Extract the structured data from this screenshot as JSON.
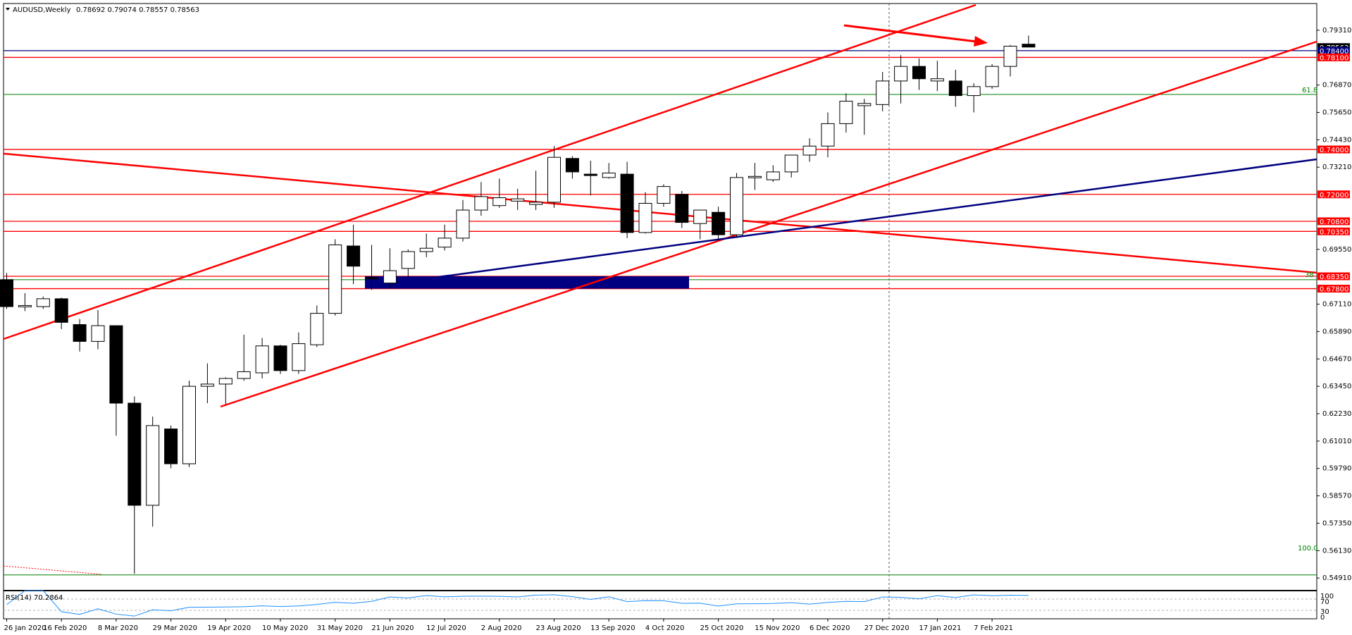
{
  "header": {
    "symbol_label": "AUDUSD,Weekly",
    "ohlc_label": "0.78692 0.79074 0.78557 0.78563"
  },
  "rsi_panel": {
    "label": "RSI(14) 70.2864",
    "levels": [
      "100",
      "70",
      "30",
      "0"
    ]
  },
  "fib_labels": {
    "f618": "61.8",
    "f38": "38",
    "f100": "100.0"
  },
  "colors": {
    "candle_up_fill": "#ffffff",
    "candle_down_fill": "#000000",
    "trend_red": "#ff0000",
    "trend_navy": "#000080",
    "fib_green": "#008000",
    "rsi_line": "#1e90ff",
    "zone_navy": "#000080"
  },
  "chart_data": {
    "type": "candlestick",
    "title": "AUDUSD,Weekly",
    "ylim": [
      0.5435,
      0.805
    ],
    "y_ticks": [
      "0.79310",
      "0.76870",
      "0.75650",
      "0.74430",
      "0.73210",
      "0.69550",
      "0.67110",
      "0.65890",
      "0.64670",
      "0.63450",
      "0.62230",
      "0.61010",
      "0.59790",
      "0.58570",
      "0.57350",
      "0.56130",
      "0.54910"
    ],
    "x_labels": [
      "26 Jan 2020",
      "16 Feb 2020",
      "8 Mar 2020",
      "29 Mar 2020",
      "19 Apr 2020",
      "10 May 2020",
      "31 May 2020",
      "21 Jun 2020",
      "12 Jul 2020",
      "2 Aug 2020",
      "23 Aug 2020",
      "13 Sep 2020",
      "4 Oct 2020",
      "25 Oct 2020",
      "15 Nov 2020",
      "6 Dec 2020",
      "27 Dec 2020",
      "17 Jan 2021",
      "7 Feb 2021"
    ],
    "price_levels": [
      {
        "value": 0.7856,
        "label": "0.78563",
        "bg": "#000000",
        "color": "#ffffff"
      },
      {
        "value": 0.784,
        "label": "0.78400",
        "bg": "#000080",
        "color": "#ffffff"
      },
      {
        "value": 0.781,
        "label": "0.78100",
        "bg": "#ff0000",
        "color": "#ffffff"
      },
      {
        "value": 0.74,
        "label": "0.74000",
        "bg": "#ff0000",
        "color": "#ffffff"
      },
      {
        "value": 0.72,
        "label": "0.72000",
        "bg": "#ff0000",
        "color": "#ffffff"
      },
      {
        "value": 0.708,
        "label": "0.70800",
        "bg": "#ff0000",
        "color": "#ffffff"
      },
      {
        "value": 0.7035,
        "label": "0.70350",
        "bg": "#ff0000",
        "color": "#ffffff"
      },
      {
        "value": 0.6835,
        "label": "0.68350",
        "bg": "#ff0000",
        "color": "#ffffff"
      },
      {
        "value": 0.678,
        "label": "0.67800",
        "bg": "#ff0000",
        "color": "#ffffff"
      }
    ],
    "fib_levels": [
      0.7645,
      0.682,
      0.5505
    ],
    "candles": [
      {
        "o": 0.682,
        "h": 0.685,
        "l": 0.669,
        "c": 0.67
      },
      {
        "o": 0.67,
        "h": 0.676,
        "l": 0.668,
        "c": 0.6705
      },
      {
        "o": 0.67,
        "h": 0.6745,
        "l": 0.669,
        "c": 0.6735
      },
      {
        "o": 0.6735,
        "h": 0.674,
        "l": 0.66,
        "c": 0.663
      },
      {
        "o": 0.662,
        "h": 0.6645,
        "l": 0.65,
        "c": 0.6545
      },
      {
        "o": 0.6545,
        "h": 0.6685,
        "l": 0.651,
        "c": 0.6615
      },
      {
        "o": 0.6615,
        "h": 0.6615,
        "l": 0.6125,
        "c": 0.627
      },
      {
        "o": 0.627,
        "h": 0.63,
        "l": 0.551,
        "c": 0.5815
      },
      {
        "o": 0.5815,
        "h": 0.621,
        "l": 0.572,
        "c": 0.617
      },
      {
        "o": 0.6155,
        "h": 0.617,
        "l": 0.598,
        "c": 0.6
      },
      {
        "o": 0.6,
        "h": 0.637,
        "l": 0.5985,
        "c": 0.6345
      },
      {
        "o": 0.6345,
        "h": 0.6447,
        "l": 0.627,
        "c": 0.6355
      },
      {
        "o": 0.6355,
        "h": 0.6385,
        "l": 0.6265,
        "c": 0.638
      },
      {
        "o": 0.638,
        "h": 0.6575,
        "l": 0.637,
        "c": 0.641
      },
      {
        "o": 0.6405,
        "h": 0.656,
        "l": 0.638,
        "c": 0.6525
      },
      {
        "o": 0.6525,
        "h": 0.653,
        "l": 0.64,
        "c": 0.6415
      },
      {
        "o": 0.6415,
        "h": 0.6585,
        "l": 0.64,
        "c": 0.6535
      },
      {
        "o": 0.653,
        "h": 0.6705,
        "l": 0.652,
        "c": 0.667
      },
      {
        "o": 0.667,
        "h": 0.7,
        "l": 0.666,
        "c": 0.6975
      },
      {
        "o": 0.697,
        "h": 0.7065,
        "l": 0.68,
        "c": 0.688
      },
      {
        "o": 0.683,
        "h": 0.6975,
        "l": 0.6775,
        "c": 0.6825
      },
      {
        "o": 0.6805,
        "h": 0.696,
        "l": 0.678,
        "c": 0.686
      },
      {
        "o": 0.687,
        "h": 0.6955,
        "l": 0.683,
        "c": 0.6945
      },
      {
        "o": 0.6945,
        "h": 0.7025,
        "l": 0.692,
        "c": 0.696
      },
      {
        "o": 0.6965,
        "h": 0.7065,
        "l": 0.695,
        "c": 0.7005
      },
      {
        "o": 0.7005,
        "h": 0.7175,
        "l": 0.699,
        "c": 0.713
      },
      {
        "o": 0.713,
        "h": 0.7255,
        "l": 0.7105,
        "c": 0.719
      },
      {
        "o": 0.715,
        "h": 0.727,
        "l": 0.714,
        "c": 0.7185
      },
      {
        "o": 0.717,
        "h": 0.7225,
        "l": 0.713,
        "c": 0.718
      },
      {
        "o": 0.7155,
        "h": 0.7305,
        "l": 0.713,
        "c": 0.7165
      },
      {
        "o": 0.7165,
        "h": 0.7415,
        "l": 0.714,
        "c": 0.7365
      },
      {
        "o": 0.736,
        "h": 0.737,
        "l": 0.727,
        "c": 0.73
      },
      {
        "o": 0.729,
        "h": 0.735,
        "l": 0.7195,
        "c": 0.7285
      },
      {
        "o": 0.7275,
        "h": 0.734,
        "l": 0.727,
        "c": 0.7295
      },
      {
        "o": 0.729,
        "h": 0.7345,
        "l": 0.7005,
        "c": 0.703
      },
      {
        "o": 0.703,
        "h": 0.721,
        "l": 0.7025,
        "c": 0.716
      },
      {
        "o": 0.716,
        "h": 0.7245,
        "l": 0.7145,
        "c": 0.7235
      },
      {
        "o": 0.72,
        "h": 0.7215,
        "l": 0.705,
        "c": 0.7075
      },
      {
        "o": 0.707,
        "h": 0.713,
        "l": 0.7,
        "c": 0.713
      },
      {
        "o": 0.712,
        "h": 0.7145,
        "l": 0.6995,
        "c": 0.702
      },
      {
        "o": 0.702,
        "h": 0.7295,
        "l": 0.701,
        "c": 0.7275
      },
      {
        "o": 0.7275,
        "h": 0.734,
        "l": 0.722,
        "c": 0.728
      },
      {
        "o": 0.7265,
        "h": 0.733,
        "l": 0.7255,
        "c": 0.73
      },
      {
        "o": 0.73,
        "h": 0.7365,
        "l": 0.7275,
        "c": 0.7375
      },
      {
        "o": 0.7375,
        "h": 0.745,
        "l": 0.7345,
        "c": 0.7415
      },
      {
        "o": 0.7415,
        "h": 0.7565,
        "l": 0.7365,
        "c": 0.7515
      },
      {
        "o": 0.7515,
        "h": 0.765,
        "l": 0.7475,
        "c": 0.7615
      },
      {
        "o": 0.7595,
        "h": 0.7625,
        "l": 0.7465,
        "c": 0.7605
      },
      {
        "o": 0.76,
        "h": 0.7745,
        "l": 0.757,
        "c": 0.7705
      },
      {
        "o": 0.7705,
        "h": 0.782,
        "l": 0.7605,
        "c": 0.777
      },
      {
        "o": 0.777,
        "h": 0.7805,
        "l": 0.7665,
        "c": 0.7715
      },
      {
        "o": 0.7705,
        "h": 0.7795,
        "l": 0.766,
        "c": 0.7715
      },
      {
        "o": 0.7705,
        "h": 0.7755,
        "l": 0.759,
        "c": 0.764
      },
      {
        "o": 0.764,
        "h": 0.7695,
        "l": 0.7565,
        "c": 0.768
      },
      {
        "o": 0.768,
        "h": 0.778,
        "l": 0.767,
        "c": 0.777
      },
      {
        "o": 0.777,
        "h": 0.7865,
        "l": 0.7725,
        "c": 0.786
      },
      {
        "o": 0.7869,
        "h": 0.7907,
        "l": 0.7856,
        "c": 0.7856
      }
    ]
  }
}
